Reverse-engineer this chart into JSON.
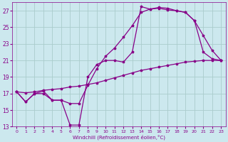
{
  "xlabel": "Windchill (Refroidissement éolien,°C)",
  "background_color": "#cce8ee",
  "grid_color": "#aacccc",
  "line_color": "#880088",
  "xlim": [
    -0.5,
    23.5
  ],
  "ylim": [
    13,
    28
  ],
  "xticks": [
    0,
    1,
    2,
    3,
    4,
    5,
    6,
    7,
    8,
    9,
    10,
    11,
    12,
    13,
    14,
    15,
    16,
    17,
    18,
    19,
    20,
    21,
    22,
    23
  ],
  "yticks": [
    13,
    15,
    17,
    19,
    21,
    23,
    25,
    27
  ],
  "series1_x": [
    0,
    1,
    2,
    3,
    4,
    5,
    6,
    7,
    8,
    9,
    10,
    11,
    12,
    13,
    14,
    15,
    16,
    17,
    18,
    19,
    20,
    21,
    22,
    23
  ],
  "series1_y": [
    17.2,
    16.0,
    17.0,
    17.0,
    16.2,
    16.2,
    13.2,
    13.2,
    19.0,
    20.5,
    21.0,
    21.0,
    20.8,
    22.0,
    27.5,
    27.2,
    27.3,
    27.1,
    27.0,
    26.8,
    25.8,
    22.0,
    21.2,
    21.0
  ],
  "series2_x": [
    0,
    1,
    2,
    3,
    4,
    5,
    6,
    7,
    8,
    9,
    10,
    11,
    12,
    13,
    14,
    15,
    16,
    17,
    18,
    19,
    20,
    21,
    22,
    23
  ],
  "series2_y": [
    17.2,
    16.0,
    17.0,
    17.3,
    16.2,
    16.2,
    15.8,
    15.8,
    18.0,
    20.0,
    21.5,
    22.5,
    23.8,
    25.2,
    26.8,
    27.2,
    27.4,
    27.3,
    27.0,
    26.8,
    25.8,
    24.0,
    22.2,
    21.0
  ],
  "series3_x": [
    0,
    1,
    2,
    3,
    4,
    5,
    6,
    7,
    8,
    9,
    10,
    11,
    12,
    13,
    14,
    15,
    16,
    17,
    18,
    19,
    20,
    21,
    22,
    23
  ],
  "series3_y": [
    17.2,
    17.1,
    17.2,
    17.4,
    17.5,
    17.6,
    17.8,
    17.9,
    18.1,
    18.3,
    18.6,
    18.9,
    19.2,
    19.5,
    19.8,
    20.0,
    20.2,
    20.4,
    20.6,
    20.8,
    20.9,
    21.0,
    21.0,
    21.0
  ]
}
